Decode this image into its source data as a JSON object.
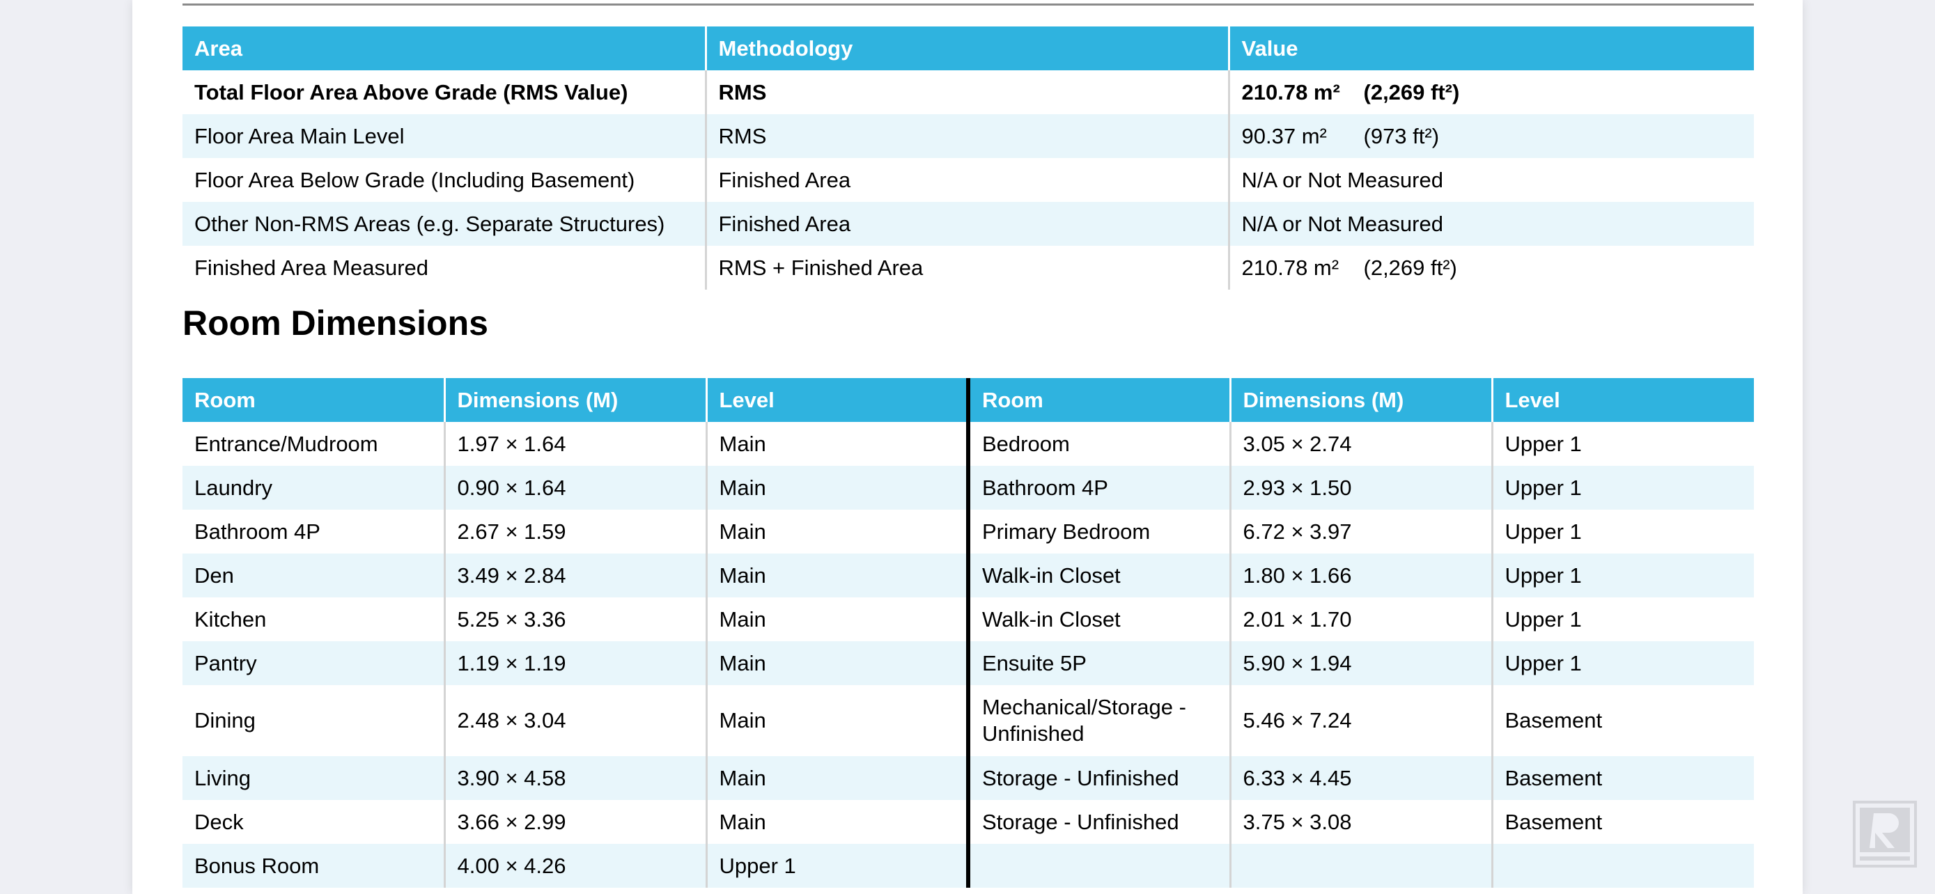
{
  "area_table": {
    "headers": [
      "Area",
      "Methodology",
      "Value"
    ],
    "rows": [
      {
        "area": "Total Floor Area Above Grade (RMS Value)",
        "methodology": "RMS",
        "metric": "210.78 m²",
        "imperial": "(2,269 ft²)"
      },
      {
        "area": "Floor Area Main Level",
        "methodology": "RMS",
        "metric": "90.37 m²",
        "imperial": "(973 ft²)"
      },
      {
        "area": "Floor Area Below Grade (Including Basement)",
        "methodology": "Finished Area",
        "metric": "N/A or Not Measured",
        "imperial": ""
      },
      {
        "area": "Other Non-RMS Areas (e.g. Separate Structures)",
        "methodology": "Finished Area",
        "metric": "N/A or Not Measured",
        "imperial": ""
      },
      {
        "area": "Finished Area Measured",
        "methodology": "RMS + Finished Area",
        "metric": "210.78 m²",
        "imperial": "(2,269 ft²)"
      }
    ]
  },
  "room_dimensions": {
    "title": "Room Dimensions",
    "headers": [
      "Room",
      "Dimensions (M)",
      "Level",
      "Room",
      "Dimensions (M)",
      "Level"
    ],
    "rows": [
      {
        "room1": "Entrance/Mudroom",
        "dim1": "1.97 × 1.64",
        "level1": "Main",
        "room2": "Bedroom",
        "dim2": "3.05 × 2.74",
        "level2": "Upper 1"
      },
      {
        "room1": "Laundry",
        "dim1": "0.90 × 1.64",
        "level1": "Main",
        "room2": "Bathroom 4P",
        "dim2": "2.93 × 1.50",
        "level2": "Upper 1"
      },
      {
        "room1": "Bathroom 4P",
        "dim1": "2.67 × 1.59",
        "level1": "Main",
        "room2": "Primary Bedroom",
        "dim2": "6.72 × 3.97",
        "level2": "Upper 1"
      },
      {
        "room1": "Den",
        "dim1": "3.49 × 2.84",
        "level1": "Main",
        "room2": "Walk-in Closet",
        "dim2": "1.80 × 1.66",
        "level2": "Upper 1"
      },
      {
        "room1": "Kitchen",
        "dim1": "5.25 × 3.36",
        "level1": "Main",
        "room2": "Walk-in Closet",
        "dim2": "2.01 × 1.70",
        "level2": "Upper 1"
      },
      {
        "room1": "Pantry",
        "dim1": "1.19 × 1.19",
        "level1": "Main",
        "room2": "Ensuite 5P",
        "dim2": "5.90 × 1.94",
        "level2": "Upper 1"
      },
      {
        "room1": "Dining",
        "dim1": "2.48 × 3.04",
        "level1": "Main",
        "room2": "Mechanical/Storage - Unfinished",
        "dim2": "5.46 × 7.24",
        "level2": "Basement"
      },
      {
        "room1": "Living",
        "dim1": "3.90 × 4.58",
        "level1": "Main",
        "room2": "Storage - Unfinished",
        "dim2": "6.33 × 4.45",
        "level2": "Basement"
      },
      {
        "room1": "Deck",
        "dim1": "3.66 × 2.99",
        "level1": "Main",
        "room2": "Storage - Unfinished",
        "dim2": "3.75 × 3.08",
        "level2": "Basement"
      },
      {
        "room1": "Bonus Room",
        "dim1": "4.00 × 4.26",
        "level1": "Upper 1",
        "room2": "",
        "dim2": "",
        "level2": ""
      }
    ]
  },
  "colors": {
    "header_bg": "#2fb3df",
    "stripe_bg": "#e8f6fb",
    "page_bg": "#eeeff4"
  },
  "icons": {
    "watermark": "r-logo-watermark-icon"
  }
}
